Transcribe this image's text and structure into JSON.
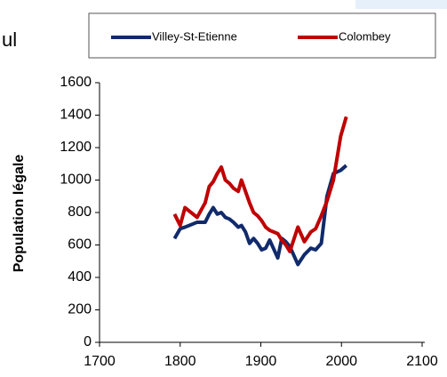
{
  "chart_data": {
    "type": "line",
    "fragment": "ul",
    "ylabel": "Population légale",
    "x": [
      1793,
      1800,
      1806,
      1821,
      1831,
      1836,
      1841,
      1846,
      1851,
      1856,
      1861,
      1866,
      1872,
      1876,
      1881,
      1886,
      1891,
      1896,
      1901,
      1906,
      1911,
      1921,
      1926,
      1931,
      1936,
      1946,
      1954,
      1962,
      1968,
      1975,
      1982,
      1990,
      1999,
      2006
    ],
    "series": [
      {
        "name": "Villey-St-Etienne",
        "color": "#112a6b",
        "values": [
          640,
          700,
          710,
          740,
          740,
          790,
          830,
          790,
          800,
          770,
          760,
          740,
          710,
          720,
          680,
          610,
          640,
          610,
          570,
          580,
          630,
          520,
          640,
          620,
          590,
          480,
          540,
          580,
          570,
          610,
          900,
          1040,
          1060,
          1090
        ]
      },
      {
        "name": "Colombey",
        "color": "#c00000",
        "values": [
          790,
          720,
          830,
          770,
          860,
          960,
          990,
          1040,
          1080,
          1000,
          980,
          950,
          930,
          1000,
          930,
          860,
          800,
          780,
          750,
          710,
          690,
          670,
          630,
          600,
          560,
          710,
          620,
          680,
          700,
          780,
          870,
          1000,
          1270,
          1390
        ]
      }
    ],
    "xlim": [
      1700,
      2100
    ],
    "xticks": [
      1700,
      1800,
      1900,
      2000,
      2100
    ],
    "ylim": [
      0,
      1600
    ],
    "yticks": [
      0,
      200,
      400,
      600,
      800,
      1000,
      1200,
      1400,
      1600
    ]
  }
}
